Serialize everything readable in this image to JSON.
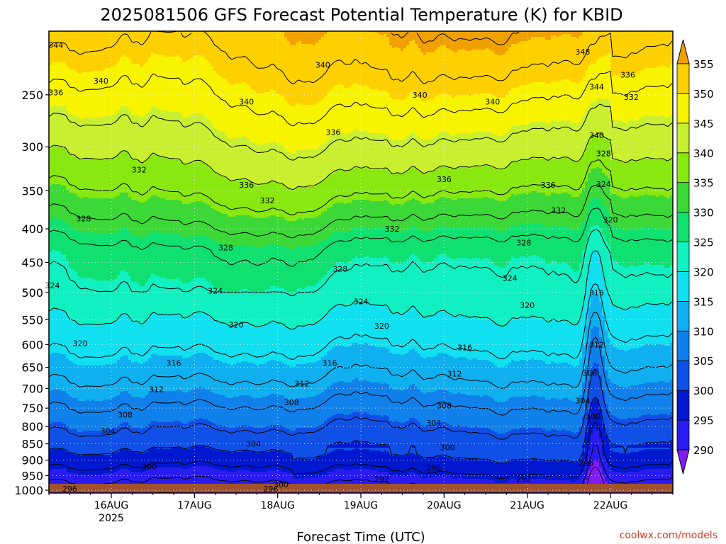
{
  "chart_data": {
    "type": "heatmap",
    "title": "2025081506 GFS Forecast Potential Temperature (K) for KBID",
    "xlabel": "Forecast Time (UTC)",
    "ylabel": "",
    "x_start": "2025-08-15T06:00Z",
    "x_ticks": [
      {
        "label": "16AUG",
        "sublabel": "2025",
        "time": "2025-08-16T00:00Z"
      },
      {
        "label": "17AUG",
        "sublabel": "",
        "time": "2025-08-17T00:00Z"
      },
      {
        "label": "18AUG",
        "sublabel": "",
        "time": "2025-08-18T00:00Z"
      },
      {
        "label": "19AUG",
        "sublabel": "",
        "time": "2025-08-19T00:00Z"
      },
      {
        "label": "20AUG",
        "sublabel": "",
        "time": "2025-08-20T00:00Z"
      },
      {
        "label": "21AUG",
        "sublabel": "",
        "time": "2025-08-21T00:00Z"
      },
      {
        "label": "22AUG",
        "sublabel": "",
        "time": "2025-08-22T00:00Z"
      }
    ],
    "x_end": "2025-08-22T18:00Z",
    "y_axis": {
      "scale": "log",
      "reversed": true,
      "range": [
        200,
        1010
      ],
      "ticks": [
        250,
        300,
        350,
        400,
        450,
        500,
        550,
        600,
        650,
        700,
        750,
        800,
        850,
        900,
        950,
        1000
      ]
    },
    "grid": true,
    "colorbar": {
      "position": "right",
      "levels": [
        290,
        295,
        300,
        305,
        310,
        315,
        320,
        325,
        330,
        335,
        340,
        345,
        350,
        355
      ],
      "colors": [
        "#7e1cf2",
        "#2a1cf0",
        "#0018d0",
        "#1050e6",
        "#1080ea",
        "#10b0f0",
        "#10e0f0",
        "#10f0c0",
        "#10e070",
        "#3cd838",
        "#88e810",
        "#c8f030",
        "#f8f400",
        "#ffd000",
        "#f0a000"
      ]
    },
    "contour_interval": 4,
    "contour_labels": [
      {
        "value": "344",
        "time": "2025-08-15T08:00Z",
        "p": 210
      },
      {
        "value": "340",
        "time": "2025-08-15T21:00Z",
        "p": 238
      },
      {
        "value": "336",
        "time": "2025-08-15T08:00Z",
        "p": 248
      },
      {
        "value": "340",
        "time": "2025-08-17T15:00Z",
        "p": 256
      },
      {
        "value": "340",
        "time": "2025-08-18T13:00Z",
        "p": 225
      },
      {
        "value": "340",
        "time": "2025-08-19T17:00Z",
        "p": 250
      },
      {
        "value": "340",
        "time": "2025-08-20T14:00Z",
        "p": 256
      },
      {
        "value": "348",
        "time": "2025-08-21T16:00Z",
        "p": 215
      },
      {
        "value": "344",
        "time": "2025-08-21T20:00Z",
        "p": 243
      },
      {
        "value": "336",
        "time": "2025-08-22T05:00Z",
        "p": 233
      },
      {
        "value": "332",
        "time": "2025-08-22T06:00Z",
        "p": 252
      },
      {
        "value": "340",
        "time": "2025-08-21T20:00Z",
        "p": 288
      },
      {
        "value": "328",
        "time": "2025-08-21T22:00Z",
        "p": 307
      },
      {
        "value": "336",
        "time": "2025-08-18T16:00Z",
        "p": 285
      },
      {
        "value": "332",
        "time": "2025-08-16T08:00Z",
        "p": 325
      },
      {
        "value": "336",
        "time": "2025-08-17T15:00Z",
        "p": 343
      },
      {
        "value": "332",
        "time": "2025-08-17T21:00Z",
        "p": 362
      },
      {
        "value": "336",
        "time": "2025-08-20T00:00Z",
        "p": 336
      },
      {
        "value": "336",
        "time": "2025-08-21T06:00Z",
        "p": 343
      },
      {
        "value": "332",
        "time": "2025-08-21T09:00Z",
        "p": 375
      },
      {
        "value": "324",
        "time": "2025-08-21T22:00Z",
        "p": 342
      },
      {
        "value": "320",
        "time": "2025-08-22T00:00Z",
        "p": 387
      },
      {
        "value": "328",
        "time": "2025-08-15T16:00Z",
        "p": 386
      },
      {
        "value": "332",
        "time": "2025-08-19T09:00Z",
        "p": 400
      },
      {
        "value": "328",
        "time": "2025-08-20T23:00Z",
        "p": 420
      },
      {
        "value": "328",
        "time": "2025-08-17T09:00Z",
        "p": 427
      },
      {
        "value": "328",
        "time": "2025-08-18T18:00Z",
        "p": 460
      },
      {
        "value": "324",
        "time": "2025-08-20T19:00Z",
        "p": 475
      },
      {
        "value": "324",
        "time": "2025-08-15T07:00Z",
        "p": 488
      },
      {
        "value": "324",
        "time": "2025-08-17T06:00Z",
        "p": 497
      },
      {
        "value": "324",
        "time": "2025-08-19T00:00Z",
        "p": 516
      },
      {
        "value": "320",
        "time": "2025-08-21T00:00Z",
        "p": 523
      },
      {
        "value": "316",
        "time": "2025-08-21T20:00Z",
        "p": 500
      },
      {
        "value": "320",
        "time": "2025-08-17T12:00Z",
        "p": 560
      },
      {
        "value": "320",
        "time": "2025-08-19T06:00Z",
        "p": 562
      },
      {
        "value": "320",
        "time": "2025-08-15T15:00Z",
        "p": 597
      },
      {
        "value": "316",
        "time": "2025-08-20T06:00Z",
        "p": 606
      },
      {
        "value": "312",
        "time": "2025-08-21T20:00Z",
        "p": 600
      },
      {
        "value": "316",
        "time": "2025-08-16T18:00Z",
        "p": 640
      },
      {
        "value": "316",
        "time": "2025-08-18T15:00Z",
        "p": 640
      },
      {
        "value": "312",
        "time": "2025-08-20T03:00Z",
        "p": 665
      },
      {
        "value": "308",
        "time": "2025-08-21T18:00Z",
        "p": 663
      },
      {
        "value": "312",
        "time": "2025-08-16T13:00Z",
        "p": 702
      },
      {
        "value": "312",
        "time": "2025-08-18T07:00Z",
        "p": 688
      },
      {
        "value": "308",
        "time": "2025-08-18T04:00Z",
        "p": 735
      },
      {
        "value": "308",
        "time": "2025-08-20T00:00Z",
        "p": 743
      },
      {
        "value": "304",
        "time": "2025-08-21T16:00Z",
        "p": 730
      },
      {
        "value": "300",
        "time": "2025-08-21T19:00Z",
        "p": 771
      },
      {
        "value": "308",
        "time": "2025-08-16T04:00Z",
        "p": 768
      },
      {
        "value": "304",
        "time": "2025-08-19T21:00Z",
        "p": 790
      },
      {
        "value": "304",
        "time": "2025-08-15T23:00Z",
        "p": 813
      },
      {
        "value": "304",
        "time": "2025-08-17T17:00Z",
        "p": 850
      },
      {
        "value": "300",
        "time": "2025-08-20T01:00Z",
        "p": 860
      },
      {
        "value": "300",
        "time": "2025-08-16T11:00Z",
        "p": 920
      },
      {
        "value": "296",
        "time": "2025-08-19T21:00Z",
        "p": 925
      },
      {
        "value": "296",
        "time": "2025-08-21T17:00Z",
        "p": 910
      },
      {
        "value": "292",
        "time": "2025-08-19T06:00Z",
        "p": 962
      },
      {
        "value": "292",
        "time": "2025-08-20T23:00Z",
        "p": 962
      },
      {
        "value": "300",
        "time": "2025-08-18T01:00Z",
        "p": 980
      },
      {
        "value": "296",
        "time": "2025-08-17T22:00Z",
        "p": 1005
      },
      {
        "value": "296",
        "time": "2025-08-15T12:00Z",
        "p": 1040
      }
    ]
  },
  "credit": "coolwx.com/models"
}
